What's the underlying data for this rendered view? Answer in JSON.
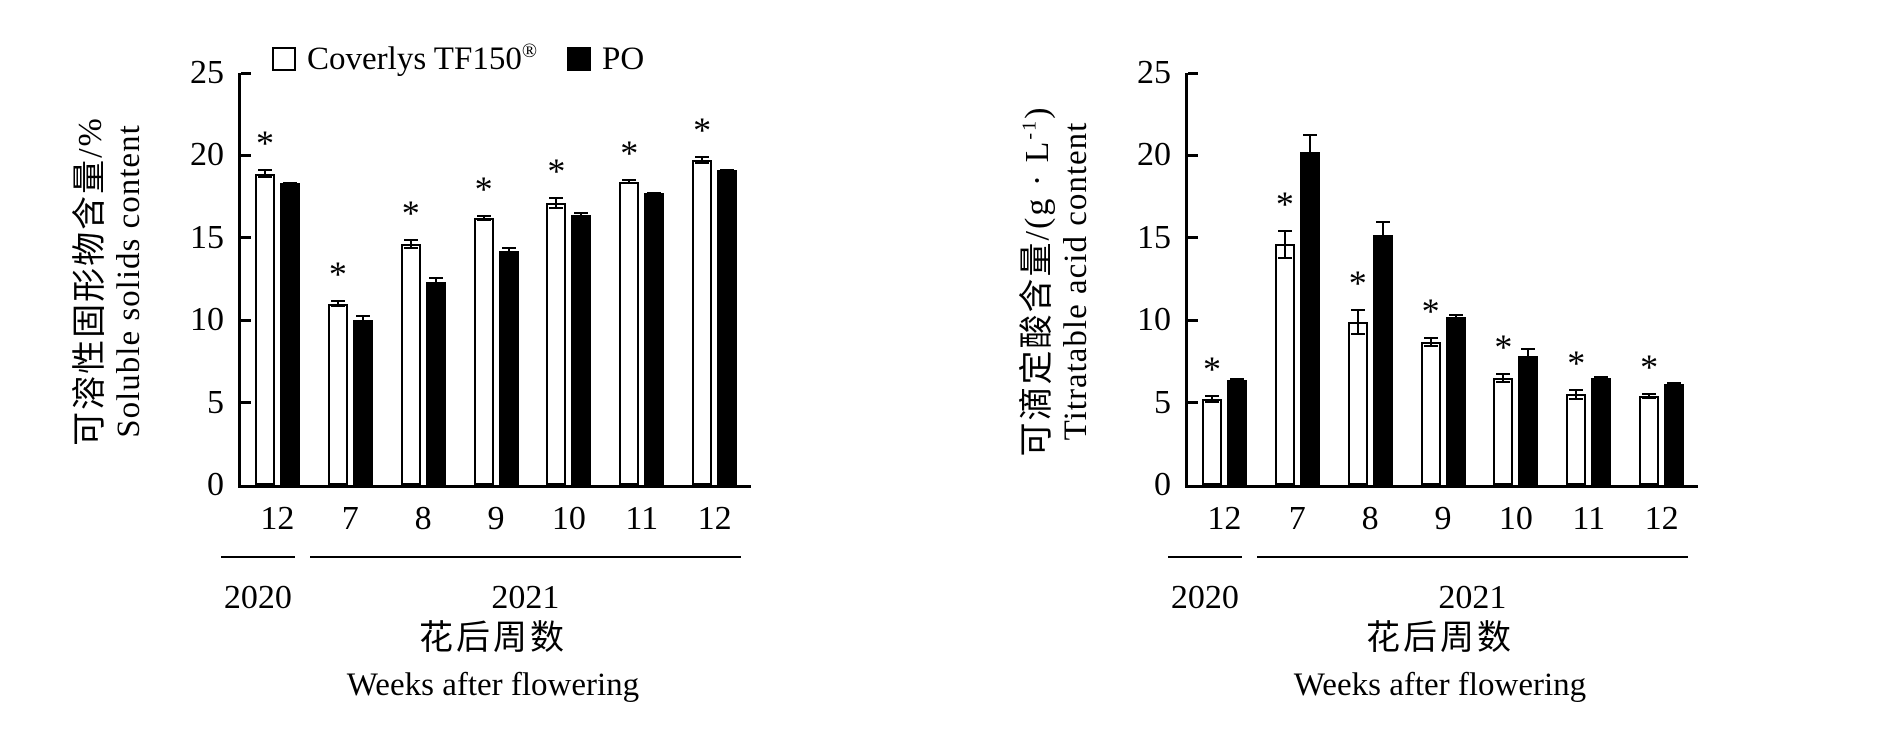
{
  "figure": {
    "legend": {
      "items": [
        {
          "swatch_color": "#ffffff",
          "label": "Coverlys TF150",
          "sup": "®"
        },
        {
          "swatch_color": "#000000",
          "label": "PO",
          "sup": ""
        }
      ]
    },
    "significance_marker": "*"
  },
  "chart_data": [
    {
      "type": "bar",
      "panel": "left",
      "ylabel_zh": {
        "pre": "可溶性固形物含量/%",
        "sup": "",
        "post": ""
      },
      "ylabel_en": "Soluble solids content",
      "xlabel_zh": "花后周数",
      "xlabel_en": "Weeks after flowering",
      "ylim": [
        0,
        25
      ],
      "yticks": [
        0,
        5,
        10,
        15,
        20,
        25
      ],
      "grid": "off",
      "legend_position": "top-left",
      "categories": [
        "12",
        "7",
        "8",
        "9",
        "10",
        "11",
        "12"
      ],
      "year_groups": [
        {
          "label": "2020",
          "from": 0,
          "to": 0
        },
        {
          "label": "2021",
          "from": 1,
          "to": 6
        }
      ],
      "series": [
        {
          "name": "Coverlys TF150®",
          "fill": "#ffffff",
          "values": [
            18.9,
            11.0,
            14.6,
            16.2,
            17.1,
            18.4,
            19.7
          ],
          "errors": [
            0.25,
            0.2,
            0.3,
            0.2,
            0.35,
            0.15,
            0.25
          ],
          "significant": [
            true,
            true,
            true,
            true,
            true,
            true,
            true
          ]
        },
        {
          "name": "PO",
          "fill": "#000000",
          "values": [
            18.3,
            10.0,
            12.3,
            14.2,
            16.4,
            17.7,
            19.1
          ],
          "errors": [
            0.1,
            0.3,
            0.3,
            0.25,
            0.15,
            0.1,
            0.1
          ],
          "significant": [
            false,
            false,
            false,
            false,
            false,
            false,
            false
          ]
        }
      ]
    },
    {
      "type": "bar",
      "panel": "right",
      "ylabel_zh": {
        "pre": "可滴定酸含量/(g · L",
        "sup": "-1",
        "post": ")"
      },
      "ylabel_en": "Titratable acid content",
      "xlabel_zh": "花后周数",
      "xlabel_en": "Weeks after flowering",
      "ylim": [
        0,
        25
      ],
      "yticks": [
        0,
        5,
        10,
        15,
        20,
        25
      ],
      "grid": "off",
      "legend_position": "none",
      "categories": [
        "12",
        "7",
        "8",
        "9",
        "10",
        "11",
        "12"
      ],
      "year_groups": [
        {
          "label": "2020",
          "from": 0,
          "to": 0
        },
        {
          "label": "2021",
          "from": 1,
          "to": 6
        }
      ],
      "series": [
        {
          "name": "Coverlys TF150®",
          "fill": "#ffffff",
          "values": [
            5.2,
            14.6,
            9.9,
            8.7,
            6.5,
            5.5,
            5.4
          ],
          "errors": [
            0.25,
            0.9,
            0.8,
            0.3,
            0.3,
            0.35,
            0.2
          ],
          "significant": [
            true,
            true,
            true,
            true,
            true,
            true,
            true
          ]
        },
        {
          "name": "PO",
          "fill": "#000000",
          "values": [
            6.4,
            20.2,
            15.2,
            10.2,
            7.8,
            6.5,
            6.1
          ],
          "errors": [
            0.1,
            1.1,
            0.8,
            0.15,
            0.5,
            0.1,
            0.15
          ],
          "significant": [
            false,
            false,
            false,
            false,
            false,
            false,
            false
          ]
        }
      ]
    }
  ]
}
